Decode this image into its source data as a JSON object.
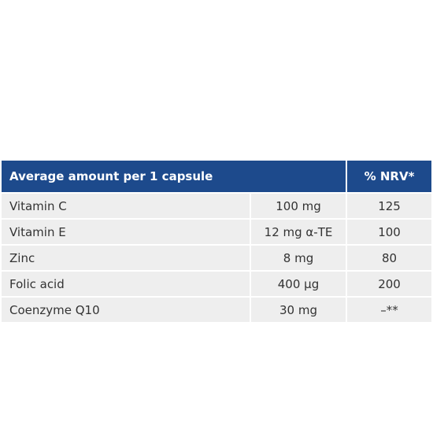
{
  "table": {
    "header": [
      "Average amount per 1 capsule",
      "% NRV*"
    ],
    "rows": [
      [
        "Vitamin C",
        "100 mg",
        "125"
      ],
      [
        "Vitamin E",
        "12 mg α-TE",
        "100"
      ],
      [
        "Zinc",
        "8 mg",
        "80"
      ],
      [
        "Folic acid",
        "400 µg",
        "200"
      ],
      [
        "Coenzyme Q10",
        "30 mg",
        "–**"
      ]
    ]
  }
}
